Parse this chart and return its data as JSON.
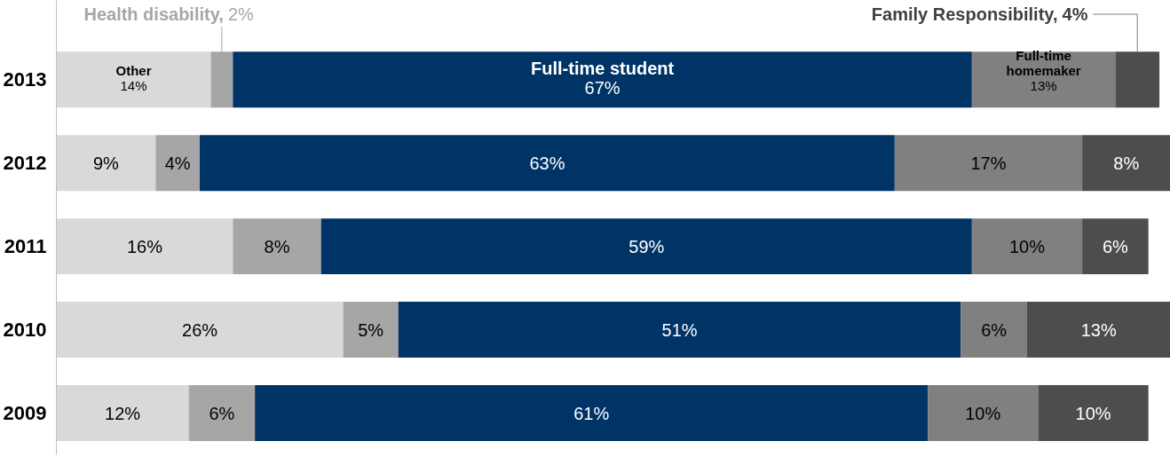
{
  "chart_data": {
    "type": "bar",
    "orientation": "horizontal",
    "stacked": true,
    "categories": [
      "2013",
      "2012",
      "2011",
      "2010",
      "2009"
    ],
    "xlim": [
      0,
      101
    ],
    "tick_labels": "y",
    "grid": false,
    "legend": false,
    "series": [
      {
        "name": "Other",
        "color": "#d9d9d9",
        "values": [
          14,
          9,
          16,
          26,
          12
        ],
        "value_labels": [
          "14%",
          "9%",
          "16%",
          "26%",
          "12%"
        ]
      },
      {
        "name": "Health disability,",
        "color": "#a6a6a6",
        "values": [
          2,
          4,
          8,
          5,
          6
        ],
        "value_labels": [
          "2%",
          "4%",
          "8%",
          "5%",
          "6%"
        ]
      },
      {
        "name": "Full-time student",
        "color": "#003366",
        "values": [
          67,
          63,
          59,
          51,
          61
        ],
        "value_labels": [
          "67%",
          "63%",
          "59%",
          "51%",
          "61%"
        ]
      },
      {
        "name": "Full-time homemaker",
        "color": "#808080",
        "values": [
          13,
          17,
          10,
          6,
          10
        ],
        "value_labels": [
          "13%",
          "17%",
          "10%",
          "6%",
          "10%"
        ]
      },
      {
        "name": "Family Responsibility,",
        "color": "#4d4d4d",
        "values": [
          4,
          8,
          6,
          13,
          10
        ],
        "value_labels": [
          "4%",
          "8%",
          "6%",
          "13%",
          "10%"
        ]
      }
    ]
  }
}
